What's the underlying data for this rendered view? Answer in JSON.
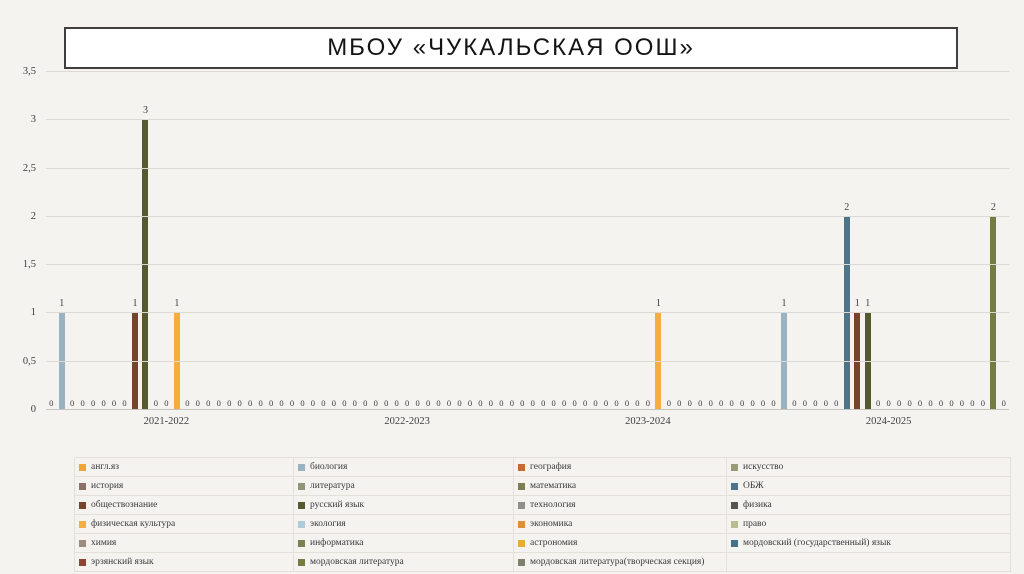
{
  "title": "МБОУ «ЧУКАЛЬСКАЯ ООШ»",
  "chart_data": {
    "type": "bar",
    "title": "МБОУ «ЧУКАЛЬСКАЯ ООШ»",
    "categories": [
      "2021-2022",
      "2022-2023",
      "2023-2024",
      "2024-2025"
    ],
    "ylim": [
      0,
      3.5
    ],
    "y_tick_step": 0.5,
    "y_tick_labels": [
      "0",
      "0,5",
      "1",
      "1,5",
      "2",
      "2,5",
      "3",
      "3,5"
    ],
    "grid": true,
    "legend_position": "bottom",
    "value_labels": true,
    "series": [
      {
        "name": "англ.яз",
        "color": "#F2A432",
        "values": [
          0,
          0,
          0,
          0
        ]
      },
      {
        "name": "биология",
        "color": "#9AB3C2",
        "values": [
          1,
          0,
          0,
          1
        ]
      },
      {
        "name": "география",
        "color": "#C56A32",
        "values": [
          0,
          0,
          0,
          0
        ]
      },
      {
        "name": "искусство",
        "color": "#9B9B77",
        "values": [
          0,
          0,
          0,
          0
        ]
      },
      {
        "name": "история",
        "color": "#8C7264",
        "values": [
          0,
          0,
          0,
          0
        ]
      },
      {
        "name": "литература",
        "color": "#8E9678",
        "values": [
          0,
          0,
          0,
          0
        ]
      },
      {
        "name": "математика",
        "color": "#7E7F51",
        "values": [
          0,
          0,
          0,
          0
        ]
      },
      {
        "name": "ОБЖ",
        "color": "#4E7489",
        "values": [
          0,
          0,
          0,
          2
        ]
      },
      {
        "name": "обществознание",
        "color": "#76432B",
        "values": [
          1,
          0,
          0,
          1
        ]
      },
      {
        "name": "русский язык",
        "color": "#565A2F",
        "values": [
          3,
          0,
          0,
          1
        ]
      },
      {
        "name": "технология",
        "color": "#8F8F8B",
        "values": [
          0,
          0,
          0,
          0
        ]
      },
      {
        "name": "физика",
        "color": "#55544E",
        "values": [
          0,
          0,
          0,
          0
        ]
      },
      {
        "name": "физическая культура",
        "color": "#F5AE3D",
        "values": [
          1,
          0,
          1,
          0
        ]
      },
      {
        "name": "экология",
        "color": "#AECBDB",
        "values": [
          0,
          0,
          0,
          0
        ]
      },
      {
        "name": "экономика",
        "color": "#DE8F3A",
        "values": [
          0,
          0,
          0,
          0
        ]
      },
      {
        "name": "право",
        "color": "#B9BD8F",
        "values": [
          0,
          0,
          0,
          0
        ]
      },
      {
        "name": "химия",
        "color": "#9D8B7E",
        "values": [
          0,
          0,
          0,
          0
        ]
      },
      {
        "name": "информатика",
        "color": "#7C8153",
        "values": [
          0,
          0,
          0,
          0
        ]
      },
      {
        "name": "астрономия",
        "color": "#E9A93C",
        "values": [
          0,
          0,
          0,
          0
        ]
      },
      {
        "name": "мордовский (государственный) язык",
        "color": "#47718B",
        "values": [
          0,
          0,
          0,
          0
        ]
      },
      {
        "name": "эрзянский язык",
        "color": "#8A4630",
        "values": [
          0,
          0,
          0,
          0
        ]
      },
      {
        "name": "мордовская литература",
        "color": "#767C3F",
        "values": [
          0,
          0,
          0,
          2
        ]
      },
      {
        "name": "мордовская литература(творческая секция)",
        "color": "#80806E",
        "values": [
          0,
          0,
          0,
          0
        ]
      }
    ]
  }
}
